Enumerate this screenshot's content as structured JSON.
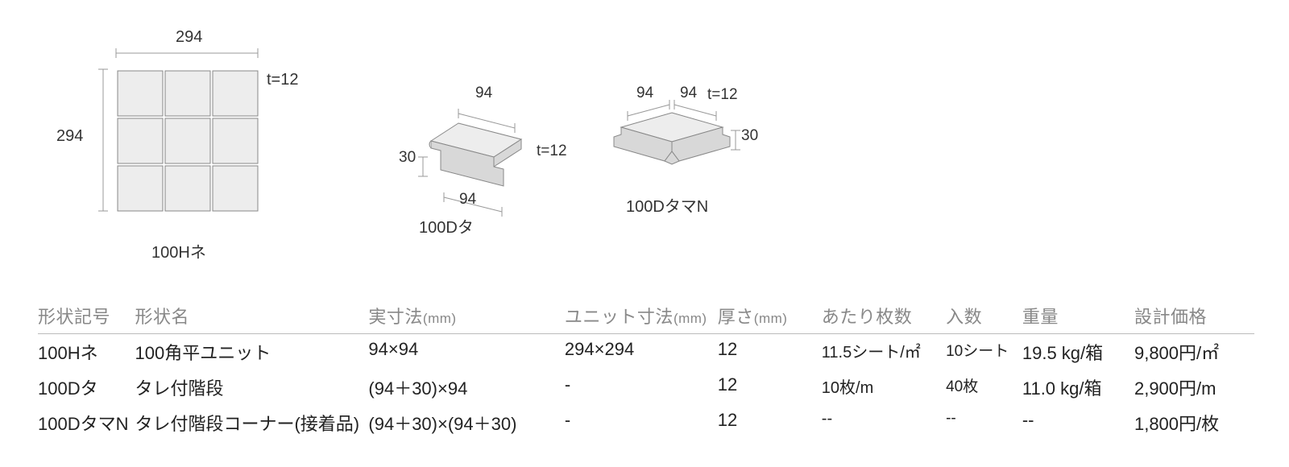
{
  "diagram": {
    "fig1": {
      "top_dim": "294",
      "left_dim": "294",
      "t_label": "t=12",
      "caption": "100Hネ"
    },
    "fig2": {
      "top_dim": "94",
      "left_dim": "30",
      "bottom_dim": "94",
      "t_label": "t=12",
      "caption": "100Dタ"
    },
    "fig3": {
      "top_dim_l": "94",
      "top_dim_r": "94",
      "right_dim": "30",
      "t_label": "t=12",
      "caption": "100DタマN"
    }
  },
  "table": {
    "headers": {
      "c0": "形状記号",
      "c1": "形状名",
      "c2": "実寸法",
      "c2_sub": "(mm)",
      "c3": "ユニット寸法",
      "c3_sub": "(mm)",
      "c4": "厚さ",
      "c4_sub": "(mm)",
      "c5": "あたり枚数",
      "c6": "入数",
      "c7": "重量",
      "c8": "設計価格"
    },
    "rows": [
      {
        "c0": "100Hネ",
        "c1": "100角平ユニット",
        "c2": "94×94",
        "c3": "294×294",
        "c4": "12",
        "c5": "11.5シート/㎡",
        "c6": "10シート",
        "c7": "19.5 kg/箱",
        "c8": "9,800円/㎡"
      },
      {
        "c0": "100Dタ",
        "c1": "タレ付階段",
        "c2": "(94＋30)×94",
        "c3": "-",
        "c4": "12",
        "c5": "10枚/m",
        "c6": "40枚",
        "c7": "11.0 kg/箱",
        "c8": "2,900円/m"
      },
      {
        "c0": "100DタマN",
        "c1": "タレ付階段コーナー(接着品)",
        "c2": "(94＋30)×(94＋30)",
        "c3": "-",
        "c4": "12",
        "c5": "--",
        "c6": "--",
        "c7": "--",
        "c8": "1,800円/枚"
      }
    ]
  },
  "col_widths": {
    "c0": "115px",
    "c1": "290px",
    "c2": "245px",
    "c3": "190px",
    "c4": "130px",
    "c5": "155px",
    "c6": "95px",
    "c7": "140px",
    "c8": "150px"
  }
}
